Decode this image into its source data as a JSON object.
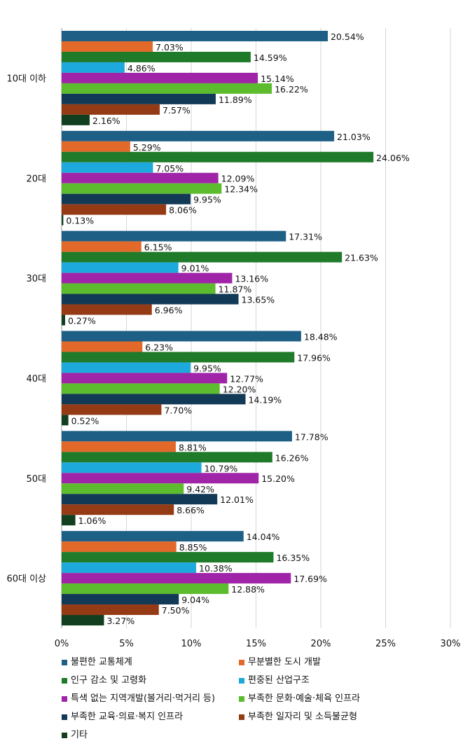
{
  "chart_data": {
    "type": "bar",
    "orientation": "horizontal",
    "categories": [
      "10대 이하",
      "20대",
      "30대",
      "40대",
      "50대",
      "60대 이상"
    ],
    "series": [
      {
        "name": "불편한 교통체계",
        "color": "#1e5f86",
        "values": [
          20.54,
          21.03,
          17.31,
          18.48,
          17.78,
          14.04
        ]
      },
      {
        "name": "무분별한 도시 개발",
        "color": "#e2692a",
        "values": [
          7.03,
          5.29,
          6.15,
          6.23,
          8.81,
          8.85
        ]
      },
      {
        "name": "인구 감소 및 고령화",
        "color": "#1f7a2a",
        "values": [
          14.59,
          24.06,
          21.63,
          17.96,
          16.26,
          16.35
        ]
      },
      {
        "name": "편중된 산업구조",
        "color": "#1ea9dc",
        "values": [
          4.86,
          7.05,
          9.01,
          9.95,
          10.79,
          10.38
        ]
      },
      {
        "name": "특색 없는 지역개발(볼거리·먹거리 등)",
        "color": "#a024a8",
        "values": [
          15.14,
          12.09,
          13.16,
          12.77,
          15.2,
          17.69
        ]
      },
      {
        "name": "부족한 문화·예술·체육 인프라",
        "color": "#5dbb2e",
        "values": [
          16.22,
          12.34,
          11.87,
          12.2,
          9.42,
          12.88
        ]
      },
      {
        "name": "부족한 교육·의료·복지 인프라",
        "color": "#123a56",
        "values": [
          11.89,
          9.95,
          13.65,
          14.19,
          12.01,
          9.04
        ]
      },
      {
        "name": "부족한 일자리 및 소득불균형",
        "color": "#943a15",
        "values": [
          7.57,
          8.06,
          6.96,
          7.7,
          8.66,
          7.5
        ]
      },
      {
        "name": "기타",
        "color": "#123f1f",
        "values": [
          2.16,
          0.13,
          0.27,
          0.52,
          1.06,
          3.27
        ]
      }
    ],
    "xlim": [
      0,
      30
    ],
    "xticks": [
      "0%",
      "5%",
      "10%",
      "15%",
      "20%",
      "25%",
      "30%"
    ],
    "value_suffix": "%",
    "grid": true,
    "legend_position": "bottom"
  }
}
